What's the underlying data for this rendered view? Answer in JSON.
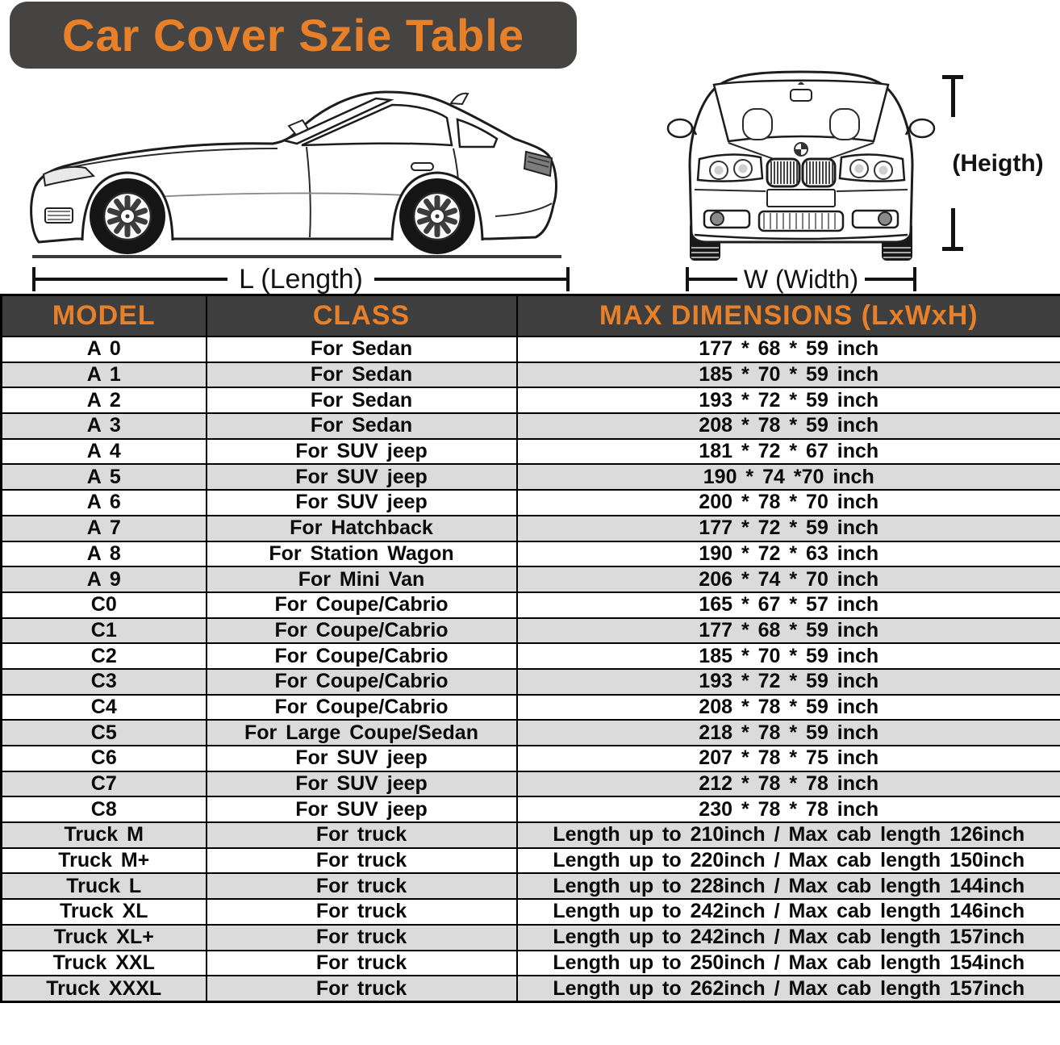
{
  "title": "Car Cover Szie Table",
  "diagram": {
    "length_label": "L (Length)",
    "width_label": "W (Width)",
    "height_label": "(Heigth)"
  },
  "table": {
    "headers": [
      "MODEL",
      "CLASS",
      "MAX DIMENSIONS (LxWxH)"
    ],
    "rows": [
      [
        "A 0",
        "For Sedan",
        "177 * 68 * 59 inch"
      ],
      [
        "A 1",
        "For Sedan",
        "185 * 70 * 59 inch"
      ],
      [
        "A 2",
        "For Sedan",
        "193 * 72 * 59 inch"
      ],
      [
        "A 3",
        "For Sedan",
        "208 * 78 * 59 inch"
      ],
      [
        "A 4",
        "For SUV jeep",
        "181 * 72 * 67 inch"
      ],
      [
        "A 5",
        "For SUV jeep",
        "190 * 74  *70 inch"
      ],
      [
        "A 6",
        "For SUV jeep",
        "200 * 78 * 70 inch"
      ],
      [
        "A 7",
        "For Hatchback",
        "177 * 72 * 59 inch"
      ],
      [
        "A 8",
        "For Station Wagon",
        "190 * 72 * 63 inch"
      ],
      [
        "A 9",
        "For Mini Van",
        "206 * 74 * 70 inch"
      ],
      [
        "C0",
        "For Coupe/Cabrio",
        "165 * 67 * 57 inch"
      ],
      [
        "C1",
        "For Coupe/Cabrio",
        "177 * 68 * 59 inch"
      ],
      [
        "C2",
        "For Coupe/Cabrio",
        "185 * 70 * 59 inch"
      ],
      [
        "C3",
        "For Coupe/Cabrio",
        "193 * 72 * 59 inch"
      ],
      [
        "C4",
        "For Coupe/Cabrio",
        "208 * 78 * 59 inch"
      ],
      [
        "C5",
        "For Large Coupe/Sedan",
        "218 * 78 * 59 inch"
      ],
      [
        "C6",
        "For SUV jeep",
        "207 * 78 * 75 inch"
      ],
      [
        "C7",
        "For SUV jeep",
        "212 * 78 * 78 inch"
      ],
      [
        "C8",
        "For SUV jeep",
        "230 * 78 * 78 inch"
      ],
      [
        "Truck M",
        "For truck",
        "Length up to 210inch / Max cab length 126inch"
      ],
      [
        "Truck M+",
        "For truck",
        "Length up to 220inch / Max cab length 150inch"
      ],
      [
        "Truck L",
        "For truck",
        "Length up to 228inch / Max cab length 144inch"
      ],
      [
        "Truck XL",
        "For truck",
        "Length up to 242inch / Max cab length 146inch"
      ],
      [
        "Truck XL+",
        "For truck",
        "Length up to 242inch / Max cab length 157inch"
      ],
      [
        "Truck XXL",
        "For truck",
        "Length up to 250inch / Max cab length 154inch"
      ],
      [
        "Truck XXXL",
        "For truck",
        "Length up to 262inch / Max cab length 157inch"
      ]
    ]
  },
  "colors": {
    "accent_orange": "#E8802A",
    "banner_bg": "#464442",
    "table_header_bg": "#3E3E3E",
    "row_alt_gray": "#DBDBDB",
    "line_ink": "#131313"
  }
}
